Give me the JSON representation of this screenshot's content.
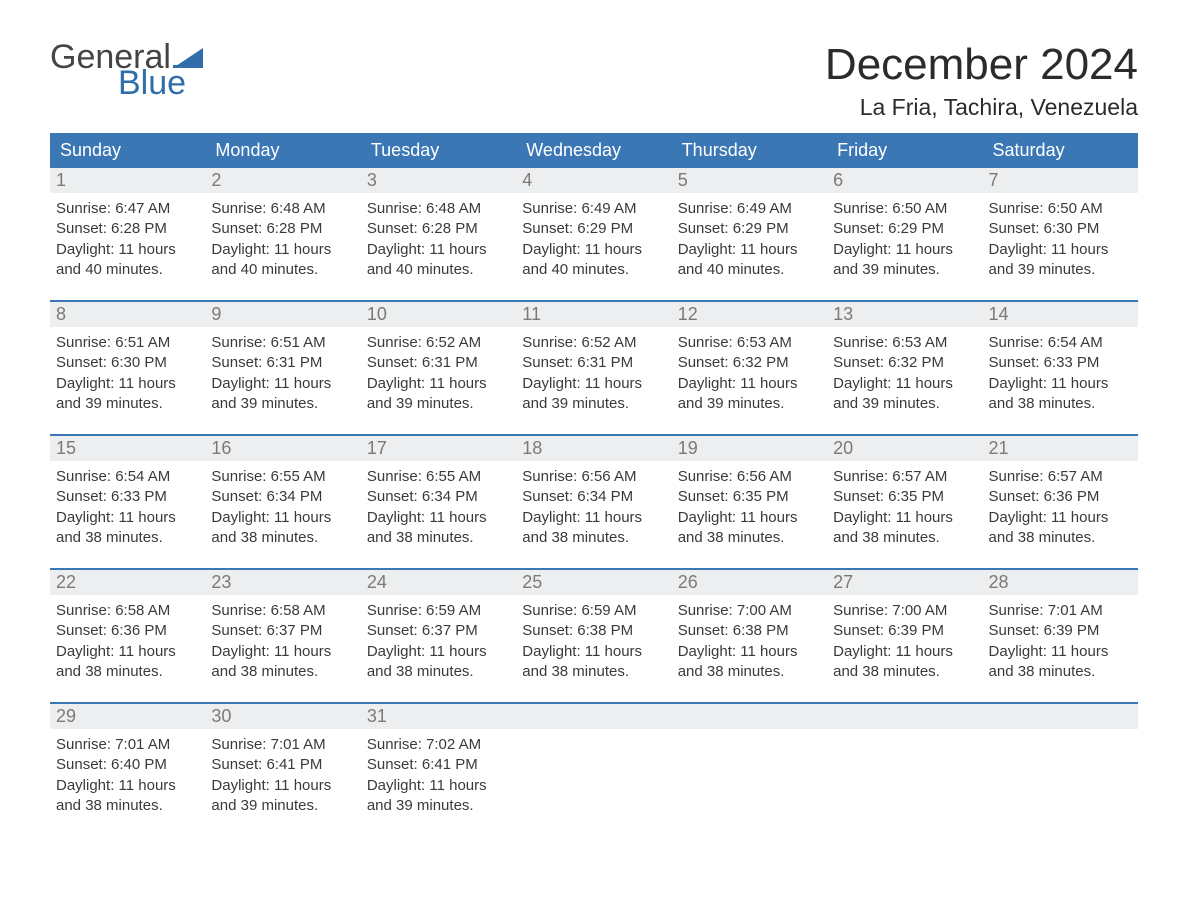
{
  "logo": {
    "text_general": "General",
    "text_blue": "Blue",
    "flag_color": "#2f6eab"
  },
  "title": "December 2024",
  "location": "La Fria, Tachira, Venezuela",
  "colors": {
    "header_bg": "#3b77b4",
    "header_text": "#ffffff",
    "daynum_bg": "#eceeef",
    "daynum_text": "#7a7a7a",
    "body_text": "#3a3a3a",
    "week_divider": "#3b77b4",
    "logo_gray": "#444444",
    "logo_blue": "#2f6eab"
  },
  "day_names": [
    "Sunday",
    "Monday",
    "Tuesday",
    "Wednesday",
    "Thursday",
    "Friday",
    "Saturday"
  ],
  "weeks": [
    [
      {
        "n": "1",
        "sunrise": "6:47 AM",
        "sunset": "6:28 PM",
        "daylight": "11 hours and 40 minutes."
      },
      {
        "n": "2",
        "sunrise": "6:48 AM",
        "sunset": "6:28 PM",
        "daylight": "11 hours and 40 minutes."
      },
      {
        "n": "3",
        "sunrise": "6:48 AM",
        "sunset": "6:28 PM",
        "daylight": "11 hours and 40 minutes."
      },
      {
        "n": "4",
        "sunrise": "6:49 AM",
        "sunset": "6:29 PM",
        "daylight": "11 hours and 40 minutes."
      },
      {
        "n": "5",
        "sunrise": "6:49 AM",
        "sunset": "6:29 PM",
        "daylight": "11 hours and 40 minutes."
      },
      {
        "n": "6",
        "sunrise": "6:50 AM",
        "sunset": "6:29 PM",
        "daylight": "11 hours and 39 minutes."
      },
      {
        "n": "7",
        "sunrise": "6:50 AM",
        "sunset": "6:30 PM",
        "daylight": "11 hours and 39 minutes."
      }
    ],
    [
      {
        "n": "8",
        "sunrise": "6:51 AM",
        "sunset": "6:30 PM",
        "daylight": "11 hours and 39 minutes."
      },
      {
        "n": "9",
        "sunrise": "6:51 AM",
        "sunset": "6:31 PM",
        "daylight": "11 hours and 39 minutes."
      },
      {
        "n": "10",
        "sunrise": "6:52 AM",
        "sunset": "6:31 PM",
        "daylight": "11 hours and 39 minutes."
      },
      {
        "n": "11",
        "sunrise": "6:52 AM",
        "sunset": "6:31 PM",
        "daylight": "11 hours and 39 minutes."
      },
      {
        "n": "12",
        "sunrise": "6:53 AM",
        "sunset": "6:32 PM",
        "daylight": "11 hours and 39 minutes."
      },
      {
        "n": "13",
        "sunrise": "6:53 AM",
        "sunset": "6:32 PM",
        "daylight": "11 hours and 39 minutes."
      },
      {
        "n": "14",
        "sunrise": "6:54 AM",
        "sunset": "6:33 PM",
        "daylight": "11 hours and 38 minutes."
      }
    ],
    [
      {
        "n": "15",
        "sunrise": "6:54 AM",
        "sunset": "6:33 PM",
        "daylight": "11 hours and 38 minutes."
      },
      {
        "n": "16",
        "sunrise": "6:55 AM",
        "sunset": "6:34 PM",
        "daylight": "11 hours and 38 minutes."
      },
      {
        "n": "17",
        "sunrise": "6:55 AM",
        "sunset": "6:34 PM",
        "daylight": "11 hours and 38 minutes."
      },
      {
        "n": "18",
        "sunrise": "6:56 AM",
        "sunset": "6:34 PM",
        "daylight": "11 hours and 38 minutes."
      },
      {
        "n": "19",
        "sunrise": "6:56 AM",
        "sunset": "6:35 PM",
        "daylight": "11 hours and 38 minutes."
      },
      {
        "n": "20",
        "sunrise": "6:57 AM",
        "sunset": "6:35 PM",
        "daylight": "11 hours and 38 minutes."
      },
      {
        "n": "21",
        "sunrise": "6:57 AM",
        "sunset": "6:36 PM",
        "daylight": "11 hours and 38 minutes."
      }
    ],
    [
      {
        "n": "22",
        "sunrise": "6:58 AM",
        "sunset": "6:36 PM",
        "daylight": "11 hours and 38 minutes."
      },
      {
        "n": "23",
        "sunrise": "6:58 AM",
        "sunset": "6:37 PM",
        "daylight": "11 hours and 38 minutes."
      },
      {
        "n": "24",
        "sunrise": "6:59 AM",
        "sunset": "6:37 PM",
        "daylight": "11 hours and 38 minutes."
      },
      {
        "n": "25",
        "sunrise": "6:59 AM",
        "sunset": "6:38 PM",
        "daylight": "11 hours and 38 minutes."
      },
      {
        "n": "26",
        "sunrise": "7:00 AM",
        "sunset": "6:38 PM",
        "daylight": "11 hours and 38 minutes."
      },
      {
        "n": "27",
        "sunrise": "7:00 AM",
        "sunset": "6:39 PM",
        "daylight": "11 hours and 38 minutes."
      },
      {
        "n": "28",
        "sunrise": "7:01 AM",
        "sunset": "6:39 PM",
        "daylight": "11 hours and 38 minutes."
      }
    ],
    [
      {
        "n": "29",
        "sunrise": "7:01 AM",
        "sunset": "6:40 PM",
        "daylight": "11 hours and 38 minutes."
      },
      {
        "n": "30",
        "sunrise": "7:01 AM",
        "sunset": "6:41 PM",
        "daylight": "11 hours and 39 minutes."
      },
      {
        "n": "31",
        "sunrise": "7:02 AM",
        "sunset": "6:41 PM",
        "daylight": "11 hours and 39 minutes."
      },
      null,
      null,
      null,
      null
    ]
  ],
  "labels": {
    "sunrise_prefix": "Sunrise: ",
    "sunset_prefix": "Sunset: ",
    "daylight_prefix": "Daylight: "
  }
}
